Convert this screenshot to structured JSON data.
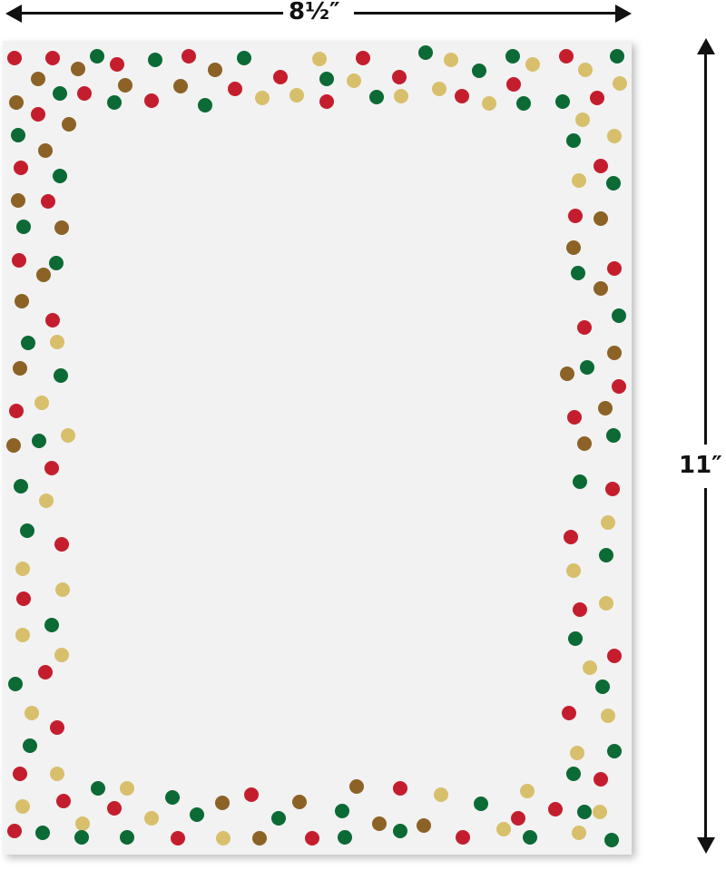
{
  "dimensions": {
    "width_label": "8½″",
    "height_label": "11″"
  },
  "dot_colors": {
    "red": "#c41e2e",
    "green": "#0c6a35",
    "bronze": "#8c6226",
    "gold": "#d8bf6c"
  },
  "paper_color": "#f2f2f2"
}
